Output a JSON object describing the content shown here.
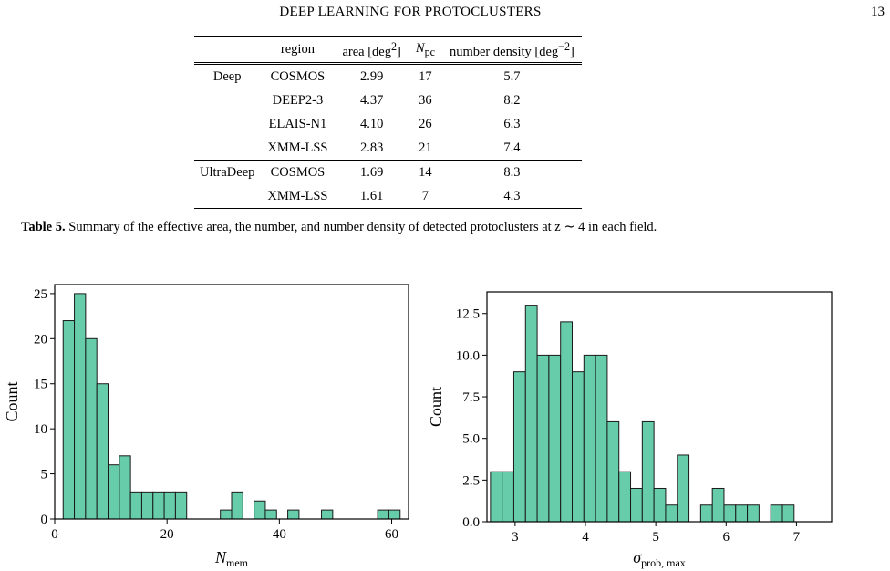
{
  "header": {
    "running_title": "DEEP LEARNING FOR PROTOCLUSTERS",
    "page_number": "13"
  },
  "table": {
    "columns": [
      "",
      "region",
      "area [deg²]",
      "Npc",
      "number density [deg⁻²]"
    ],
    "groups": [
      {
        "name": "Deep",
        "rows": [
          {
            "region": "COSMOS",
            "area": "2.99",
            "npc": "17",
            "density": "5.7"
          },
          {
            "region": "DEEP2-3",
            "area": "4.37",
            "npc": "36",
            "density": "8.2"
          },
          {
            "region": "ELAIS-N1",
            "area": "4.10",
            "npc": "26",
            "density": "6.3"
          },
          {
            "region": "XMM-LSS",
            "area": "2.83",
            "npc": "21",
            "density": "7.4"
          }
        ]
      },
      {
        "name": "UltraDeep",
        "rows": [
          {
            "region": "COSMOS",
            "area": "1.69",
            "npc": "14",
            "density": "8.3"
          },
          {
            "region": "XMM-LSS",
            "area": "1.61",
            "npc": "7",
            "density": "4.3"
          }
        ]
      }
    ],
    "caption_label": "Table 5.",
    "caption_text": "Summary of the effective area, the number, and number density of detected protoclusters at z ∼ 4 in each field."
  },
  "colors": {
    "bar_fill": "#66ccaa",
    "bar_edge": "#1a1a1a"
  },
  "chart_data": [
    {
      "type": "bar",
      "subtype": "histogram",
      "xlabel": "Nmem",
      "ylabel": "Count",
      "xlim": [
        0,
        63
      ],
      "ylim": [
        0,
        26
      ],
      "xticks": [
        0,
        20,
        40,
        60
      ],
      "yticks": [
        0,
        5,
        10,
        15,
        20,
        25
      ],
      "bin_start": 1.5,
      "bin_width": 2.0,
      "values": [
        22,
        25,
        20,
        15,
        6,
        7,
        3,
        3,
        3,
        3,
        3,
        0,
        0,
        0,
        1,
        3,
        0,
        2,
        1,
        0,
        1,
        0,
        0,
        1,
        0,
        0,
        0,
        0,
        1,
        1
      ],
      "grid": false
    },
    {
      "type": "bar",
      "subtype": "histogram",
      "xlabel": "σprob, max",
      "ylabel": "Count",
      "xlim": [
        2.6,
        7.5
      ],
      "ylim": [
        0,
        13.8
      ],
      "xticks": [
        3,
        4,
        5,
        6,
        7
      ],
      "yticks": [
        "0.0",
        "2.5",
        "5.0",
        "7.5",
        "10.0",
        "12.5"
      ],
      "bin_start": 2.65,
      "bin_width": 0.166,
      "values": [
        3,
        3,
        9,
        13,
        10,
        10,
        12,
        9,
        10,
        10,
        6,
        3,
        2,
        6,
        2,
        1,
        4,
        0,
        1,
        2,
        1,
        1,
        1,
        0,
        1,
        1
      ],
      "grid": false
    }
  ]
}
